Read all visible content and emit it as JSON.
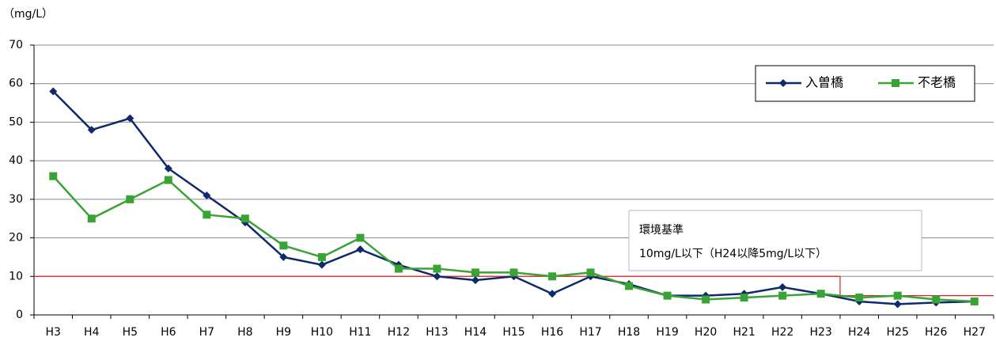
{
  "chart_data": {
    "type": "line",
    "y_label": "（mg/L）",
    "categories": [
      "H3",
      "H4",
      "H5",
      "H6",
      "H7",
      "H8",
      "H9",
      "H10",
      "H11",
      "H12",
      "H13",
      "H14",
      "H15",
      "H16",
      "H17",
      "H18",
      "H19",
      "H20",
      "H21",
      "H22",
      "H23",
      "H24",
      "H25",
      "H26",
      "H27"
    ],
    "series": [
      {
        "name": "入曽橋",
        "color": "#0f2a6b",
        "marker": "diamond",
        "values": [
          58,
          48,
          51,
          38,
          31,
          24,
          15,
          13,
          17,
          13,
          10,
          9,
          10,
          5.5,
          10,
          8,
          5,
          5,
          5.5,
          7.2,
          5.5,
          3.5,
          2.8,
          3.2,
          3.5
        ]
      },
      {
        "name": "不老橋",
        "color": "#3aa335",
        "marker": "square",
        "values": [
          36,
          25,
          30,
          35,
          26,
          25,
          18,
          15,
          20,
          12,
          12,
          11,
          11,
          10,
          11,
          7.5,
          5,
          4,
          4.5,
          5,
          5.5,
          4.5,
          5,
          4,
          3.5
        ]
      }
    ],
    "standard": {
      "color": "#e02020",
      "values": [
        10,
        10,
        10,
        10,
        10,
        10,
        10,
        10,
        10,
        10,
        10,
        10,
        10,
        10,
        10,
        10,
        10,
        10,
        10,
        10,
        10,
        5,
        5,
        5,
        5
      ]
    },
    "annotation": {
      "title": "環境基準",
      "text": "10mg/L以下（H24以降5mg/L以下）"
    },
    "ylim": [
      0,
      70
    ],
    "yticks": [
      0,
      10,
      20,
      30,
      40,
      50,
      60,
      70
    ],
    "grid": true,
    "legend": "top-right"
  }
}
